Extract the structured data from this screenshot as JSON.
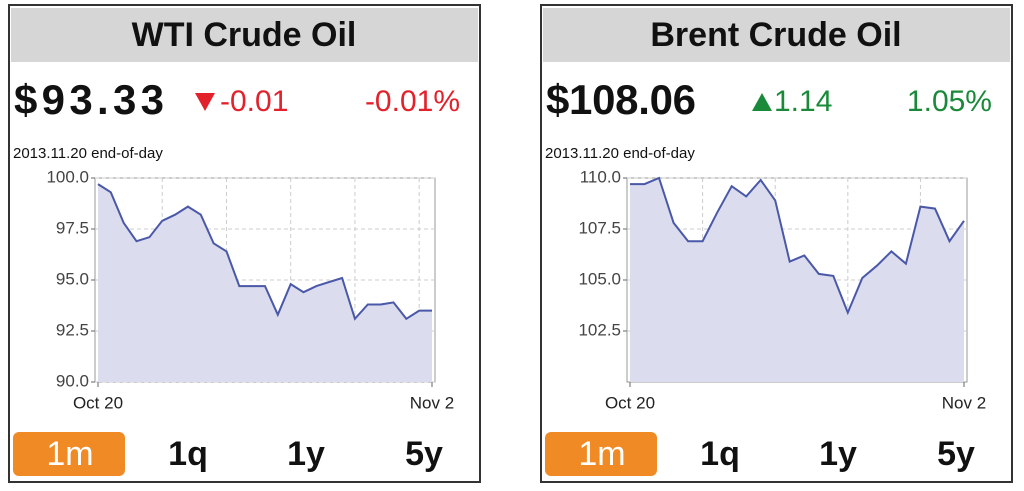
{
  "chart_data": [
    {
      "type": "line",
      "title": "WTI Crude Oil",
      "price": "$93.33",
      "change": "-0.01",
      "change_percent": "-0.01%",
      "direction": "down",
      "change_color": "#e3212b",
      "note": "2013.11.20 end-of-day",
      "categories": [
        "Oct 20",
        null,
        null,
        null,
        null,
        null,
        null,
        null,
        null,
        null,
        null,
        null,
        null,
        null,
        null,
        null,
        null,
        null,
        null,
        null,
        null,
        null,
        null,
        null,
        null,
        null,
        "Nov 2"
      ],
      "values": [
        99.7,
        99.3,
        97.8,
        96.9,
        97.1,
        97.9,
        98.2,
        98.6,
        98.2,
        96.8,
        96.4,
        94.7,
        94.7,
        94.7,
        93.3,
        94.8,
        94.4,
        94.7,
        94.9,
        95.1,
        93.1,
        93.8,
        93.8,
        93.9,
        93.1,
        93.5,
        93.5
      ],
      "color": "#4a58a8",
      "fill": "#dcdcef",
      "ylim": [
        90,
        100
      ],
      "yticks": [
        {
          "value": 90,
          "label": "90.0"
        },
        {
          "value": 92.5,
          "label": "92.5"
        },
        {
          "value": 95,
          "label": "95.0"
        },
        {
          "value": 97.5,
          "label": "97.5"
        },
        {
          "value": 100,
          "label": "100.0"
        }
      ],
      "grid": true,
      "ranges": [
        "1m",
        "1q",
        "1y",
        "5y"
      ],
      "selected_range": "1m"
    },
    {
      "type": "line",
      "title": "Brent Crude Oil",
      "price": "$108.06",
      "change": "1.14",
      "change_percent": "1.05%",
      "direction": "up",
      "change_color": "#1a8a3a",
      "note": "2013.11.20 end-of-day",
      "categories": [
        "Oct 20",
        null,
        null,
        null,
        null,
        null,
        null,
        null,
        null,
        null,
        null,
        null,
        null,
        null,
        null,
        null,
        null,
        null,
        null,
        null,
        null,
        null,
        null,
        "Nov 2"
      ],
      "values": [
        109.7,
        109.7,
        110.0,
        107.8,
        106.9,
        106.9,
        108.3,
        109.6,
        109.1,
        109.9,
        108.9,
        105.9,
        106.2,
        105.3,
        105.2,
        103.4,
        105.1,
        105.7,
        106.4,
        105.8,
        108.6,
        108.5,
        106.9,
        107.9
      ],
      "color": "#4a58a8",
      "fill": "#dcdcef",
      "ylim": [
        100,
        110
      ],
      "yticks": [
        {
          "value": 102.5,
          "label": "102.5"
        },
        {
          "value": 105,
          "label": "105.0"
        },
        {
          "value": 107.5,
          "label": "107.5"
        },
        {
          "value": 110,
          "label": "110.0"
        }
      ],
      "grid": true,
      "ranges": [
        "1m",
        "1q",
        "1y",
        "5y"
      ],
      "selected_range": "1m"
    }
  ]
}
